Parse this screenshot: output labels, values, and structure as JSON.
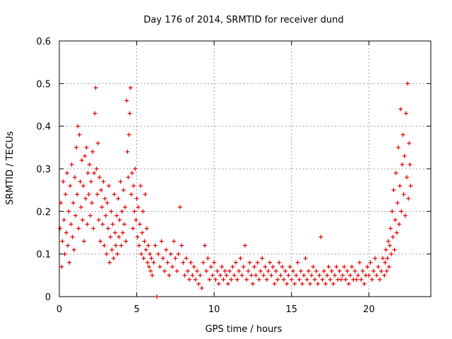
{
  "chart_data": {
    "type": "scatter",
    "title": "Day 176 of 2014, SRMTID for receiver dund",
    "xlabel": "GPS time / hours",
    "ylabel": "SRMTID / TECUs",
    "xlim": [
      0,
      24
    ],
    "ylim": [
      0,
      0.6
    ],
    "x_ticks": [
      0,
      5,
      10,
      15,
      20
    ],
    "x_tick_labels": [
      "0",
      "5",
      "10",
      "15",
      "20"
    ],
    "y_ticks": [
      0,
      0.1,
      0.2,
      0.3,
      0.4,
      0.5,
      0.6
    ],
    "y_tick_labels": [
      "0",
      "0.1",
      "0.2",
      "0.3",
      "0.4",
      "0.5",
      "0.6"
    ],
    "grid": true,
    "marker": "+",
    "color": "#e00000",
    "series": [
      {
        "name": "SRMTID",
        "points": [
          [
            0.05,
            0.16
          ],
          [
            0.1,
            0.22
          ],
          [
            0.15,
            0.07
          ],
          [
            0.2,
            0.13
          ],
          [
            0.25,
            0.27
          ],
          [
            0.3,
            0.18
          ],
          [
            0.35,
            0.1
          ],
          [
            0.4,
            0.24
          ],
          [
            0.45,
            0.15
          ],
          [
            0.5,
            0.29
          ],
          [
            0.55,
            0.12
          ],
          [
            0.6,
            0.2
          ],
          [
            0.65,
            0.08
          ],
          [
            0.7,
            0.26
          ],
          [
            0.75,
            0.17
          ],
          [
            0.8,
            0.31
          ],
          [
            0.85,
            0.14
          ],
          [
            0.9,
            0.22
          ],
          [
            0.95,
            0.11
          ],
          [
            1.0,
            0.28
          ],
          [
            1.05,
            0.19
          ],
          [
            1.1,
            0.35
          ],
          [
            1.15,
            0.24
          ],
          [
            1.2,
            0.4
          ],
          [
            1.25,
            0.16
          ],
          [
            1.3,
            0.38
          ],
          [
            1.35,
            0.27
          ],
          [
            1.4,
            0.21
          ],
          [
            1.45,
            0.32
          ],
          [
            1.5,
            0.18
          ],
          [
            1.55,
            0.26
          ],
          [
            1.6,
            0.13
          ],
          [
            1.65,
            0.33
          ],
          [
            1.7,
            0.23
          ],
          [
            1.75,
            0.35
          ],
          [
            1.8,
            0.17
          ],
          [
            1.85,
            0.29
          ],
          [
            1.9,
            0.24
          ],
          [
            1.95,
            0.31
          ],
          [
            2.0,
            0.19
          ],
          [
            2.05,
            0.27
          ],
          [
            2.1,
            0.22
          ],
          [
            2.15,
            0.34
          ],
          [
            2.2,
            0.16
          ],
          [
            2.25,
            0.29
          ],
          [
            2.3,
            0.43
          ],
          [
            2.35,
            0.49
          ],
          [
            2.4,
            0.3
          ],
          [
            2.45,
            0.24
          ],
          [
            2.5,
            0.36
          ],
          [
            2.55,
            0.18
          ],
          [
            2.6,
            0.28
          ],
          [
            2.65,
            0.13
          ],
          [
            2.7,
            0.25
          ],
          [
            2.75,
            0.21
          ],
          [
            2.8,
            0.17
          ],
          [
            2.85,
            0.27
          ],
          [
            2.9,
            0.12
          ],
          [
            2.95,
            0.23
          ],
          [
            3.0,
            0.19
          ],
          [
            3.05,
            0.1
          ],
          [
            3.1,
            0.22
          ],
          [
            3.15,
            0.16
          ],
          [
            3.2,
            0.26
          ],
          [
            3.25,
            0.08
          ],
          [
            3.3,
            0.14
          ],
          [
            3.35,
            0.2
          ],
          [
            3.4,
            0.11
          ],
          [
            3.45,
            0.17
          ],
          [
            3.5,
            0.09
          ],
          [
            3.55,
            0.24
          ],
          [
            3.6,
            0.15
          ],
          [
            3.65,
            0.12
          ],
          [
            3.7,
            0.19
          ],
          [
            3.75,
            0.1
          ],
          [
            3.8,
            0.23
          ],
          [
            3.85,
            0.14
          ],
          [
            3.9,
            0.18
          ],
          [
            3.95,
            0.27
          ],
          [
            4.0,
            0.12
          ],
          [
            4.05,
            0.2
          ],
          [
            4.1,
            0.15
          ],
          [
            4.15,
            0.25
          ],
          [
            4.2,
            0.17
          ],
          [
            4.25,
            0.21
          ],
          [
            4.3,
            0.13
          ],
          [
            4.35,
            0.46
          ],
          [
            4.4,
            0.34
          ],
          [
            4.45,
            0.28
          ],
          [
            4.5,
            0.38
          ],
          [
            4.55,
            0.43
          ],
          [
            4.6,
            0.49
          ],
          [
            4.65,
            0.24
          ],
          [
            4.7,
            0.29
          ],
          [
            4.75,
            0.16
          ],
          [
            4.8,
            0.26
          ],
          [
            4.85,
            0.2
          ],
          [
            4.9,
            0.3
          ],
          [
            4.95,
            0.18
          ],
          [
            5.0,
            0.23
          ],
          [
            5.05,
            0.14
          ],
          [
            5.1,
            0.21
          ],
          [
            5.15,
            0.12
          ],
          [
            5.2,
            0.17
          ],
          [
            5.25,
            0.26
          ],
          [
            5.3,
            0.1
          ],
          [
            5.35,
            0.15
          ],
          [
            5.4,
            0.2
          ],
          [
            5.45,
            0.09
          ],
          [
            5.5,
            0.13
          ],
          [
            5.55,
            0.24
          ],
          [
            5.6,
            0.11
          ],
          [
            5.65,
            0.16
          ],
          [
            5.7,
            0.08
          ],
          [
            5.75,
            0.12
          ],
          [
            5.8,
            0.07
          ],
          [
            5.85,
            0.1
          ],
          [
            5.9,
            0.06
          ],
          [
            5.95,
            0.09
          ],
          [
            6.0,
            0.05
          ],
          [
            6.1,
            0.08
          ],
          [
            6.2,
            0.12
          ],
          [
            6.3,
            0.0
          ],
          [
            6.4,
            0.1
          ],
          [
            6.5,
            0.07
          ],
          [
            6.6,
            0.13
          ],
          [
            6.7,
            0.09
          ],
          [
            6.8,
            0.06
          ],
          [
            6.9,
            0.11
          ],
          [
            7.0,
            0.08
          ],
          [
            7.1,
            0.05
          ],
          [
            7.2,
            0.1
          ],
          [
            7.3,
            0.07
          ],
          [
            7.4,
            0.13
          ],
          [
            7.5,
            0.09
          ],
          [
            7.6,
            0.06
          ],
          [
            7.7,
            0.1
          ],
          [
            7.8,
            0.21
          ],
          [
            7.9,
            0.12
          ],
          [
            8.0,
            0.08
          ],
          [
            8.1,
            0.05
          ],
          [
            8.2,
            0.09
          ],
          [
            8.3,
            0.06
          ],
          [
            8.4,
            0.04
          ],
          [
            8.5,
            0.08
          ],
          [
            8.6,
            0.05
          ],
          [
            8.7,
            0.07
          ],
          [
            8.8,
            0.04
          ],
          [
            8.9,
            0.06
          ],
          [
            9.0,
            0.03
          ],
          [
            9.1,
            0.05
          ],
          [
            9.2,
            0.02
          ],
          [
            9.3,
            0.08
          ],
          [
            9.4,
            0.12
          ],
          [
            9.5,
            0.06
          ],
          [
            9.6,
            0.09
          ],
          [
            9.7,
            0.04
          ],
          [
            9.8,
            0.07
          ],
          [
            9.9,
            0.05
          ],
          [
            10.0,
            0.08
          ],
          [
            10.1,
            0.04
          ],
          [
            10.2,
            0.06
          ],
          [
            10.3,
            0.03
          ],
          [
            10.4,
            0.05
          ],
          [
            10.5,
            0.07
          ],
          [
            10.6,
            0.04
          ],
          [
            10.7,
            0.06
          ],
          [
            10.8,
            0.05
          ],
          [
            10.9,
            0.03
          ],
          [
            11.0,
            0.06
          ],
          [
            11.1,
            0.04
          ],
          [
            11.2,
            0.07
          ],
          [
            11.3,
            0.05
          ],
          [
            11.4,
            0.08
          ],
          [
            11.5,
            0.04
          ],
          [
            11.6,
            0.06
          ],
          [
            11.7,
            0.09
          ],
          [
            11.8,
            0.05
          ],
          [
            11.9,
            0.07
          ],
          [
            12.0,
            0.12
          ],
          [
            12.1,
            0.04
          ],
          [
            12.2,
            0.06
          ],
          [
            12.3,
            0.08
          ],
          [
            12.4,
            0.05
          ],
          [
            12.5,
            0.03
          ],
          [
            12.6,
            0.07
          ],
          [
            12.7,
            0.05
          ],
          [
            12.8,
            0.08
          ],
          [
            12.9,
            0.04
          ],
          [
            13.0,
            0.06
          ],
          [
            13.1,
            0.09
          ],
          [
            13.2,
            0.05
          ],
          [
            13.3,
            0.07
          ],
          [
            13.4,
            0.04
          ],
          [
            13.5,
            0.06
          ],
          [
            13.6,
            0.08
          ],
          [
            13.7,
            0.05
          ],
          [
            13.8,
            0.07
          ],
          [
            13.9,
            0.03
          ],
          [
            14.0,
            0.06
          ],
          [
            14.1,
            0.04
          ],
          [
            14.2,
            0.08
          ],
          [
            14.3,
            0.05
          ],
          [
            14.4,
            0.07
          ],
          [
            14.5,
            0.04
          ],
          [
            14.6,
            0.06
          ],
          [
            14.7,
            0.03
          ],
          [
            14.8,
            0.05
          ],
          [
            14.9,
            0.07
          ],
          [
            15.0,
            0.04
          ],
          [
            15.1,
            0.06
          ],
          [
            15.2,
            0.03
          ],
          [
            15.3,
            0.05
          ],
          [
            15.4,
            0.08
          ],
          [
            15.5,
            0.04
          ],
          [
            15.6,
            0.06
          ],
          [
            15.7,
            0.03
          ],
          [
            15.8,
            0.05
          ],
          [
            15.9,
            0.09
          ],
          [
            16.0,
            0.04
          ],
          [
            16.1,
            0.06
          ],
          [
            16.2,
            0.03
          ],
          [
            16.3,
            0.05
          ],
          [
            16.4,
            0.07
          ],
          [
            16.5,
            0.04
          ],
          [
            16.6,
            0.06
          ],
          [
            16.7,
            0.03
          ],
          [
            16.8,
            0.05
          ],
          [
            16.9,
            0.14
          ],
          [
            17.0,
            0.04
          ],
          [
            17.1,
            0.06
          ],
          [
            17.2,
            0.03
          ],
          [
            17.3,
            0.05
          ],
          [
            17.4,
            0.07
          ],
          [
            17.5,
            0.04
          ],
          [
            17.6,
            0.06
          ],
          [
            17.7,
            0.03
          ],
          [
            17.8,
            0.05
          ],
          [
            17.9,
            0.07
          ],
          [
            18.0,
            0.04
          ],
          [
            18.1,
            0.06
          ],
          [
            18.2,
            0.04
          ],
          [
            18.3,
            0.05
          ],
          [
            18.4,
            0.07
          ],
          [
            18.5,
            0.04
          ],
          [
            18.6,
            0.06
          ],
          [
            18.7,
            0.03
          ],
          [
            18.8,
            0.05
          ],
          [
            18.9,
            0.07
          ],
          [
            19.0,
            0.04
          ],
          [
            19.1,
            0.06
          ],
          [
            19.2,
            0.04
          ],
          [
            19.3,
            0.05
          ],
          [
            19.4,
            0.08
          ],
          [
            19.5,
            0.04
          ],
          [
            19.6,
            0.06
          ],
          [
            19.7,
            0.03
          ],
          [
            19.8,
            0.05
          ],
          [
            19.9,
            0.07
          ],
          [
            20.0,
            0.05
          ],
          [
            20.1,
            0.08
          ],
          [
            20.2,
            0.04
          ],
          [
            20.3,
            0.06
          ],
          [
            20.4,
            0.09
          ],
          [
            20.5,
            0.05
          ],
          [
            20.6,
            0.07
          ],
          [
            20.7,
            0.04
          ],
          [
            20.8,
            0.06
          ],
          [
            20.9,
            0.09
          ],
          [
            21.0,
            0.05
          ],
          [
            21.05,
            0.08
          ],
          [
            21.1,
            0.11
          ],
          [
            21.15,
            0.06
          ],
          [
            21.2,
            0.09
          ],
          [
            21.25,
            0.13
          ],
          [
            21.3,
            0.07
          ],
          [
            21.35,
            0.12
          ],
          [
            21.4,
            0.16
          ],
          [
            21.45,
            0.1
          ],
          [
            21.5,
            0.2
          ],
          [
            21.55,
            0.14
          ],
          [
            21.6,
            0.25
          ],
          [
            21.65,
            0.11
          ],
          [
            21.7,
            0.18
          ],
          [
            21.75,
            0.29
          ],
          [
            21.8,
            0.15
          ],
          [
            21.85,
            0.22
          ],
          [
            21.9,
            0.35
          ],
          [
            21.95,
            0.17
          ],
          [
            22.0,
            0.26
          ],
          [
            22.05,
            0.44
          ],
          [
            22.1,
            0.2
          ],
          [
            22.15,
            0.31
          ],
          [
            22.2,
            0.38
          ],
          [
            22.25,
            0.24
          ],
          [
            22.3,
            0.33
          ],
          [
            22.35,
            0.19
          ],
          [
            22.4,
            0.43
          ],
          [
            22.45,
            0.28
          ],
          [
            22.5,
            0.5
          ],
          [
            22.55,
            0.23
          ],
          [
            22.6,
            0.36
          ],
          [
            22.65,
            0.31
          ],
          [
            22.7,
            0.26
          ]
        ]
      }
    ]
  }
}
